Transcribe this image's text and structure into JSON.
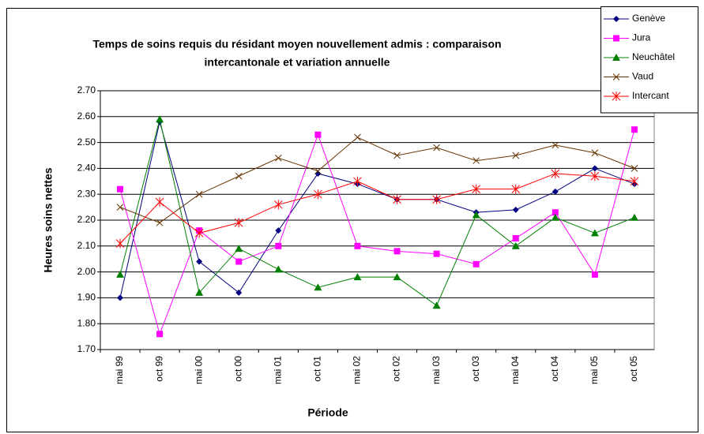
{
  "chart_data": {
    "type": "line",
    "title": [
      "Temps de soins requis du résidant moyen nouvellement admis : comparaison",
      "intercantonale et variation annuelle"
    ],
    "x_label": "Période",
    "y_label": "Heures soins nettes",
    "categories": [
      "mai 99",
      "oct 99",
      "mai 00",
      "oct 00",
      "mai 01",
      "oct 01",
      "mai 02",
      "oct 02",
      "mai 03",
      "oct 03",
      "mai 04",
      "oct 04",
      "mai 05",
      "oct 05"
    ],
    "series": [
      {
        "name": "Genève",
        "color": "#000080",
        "marker": "diamond",
        "values": [
          1.9,
          2.58,
          2.04,
          1.92,
          2.16,
          2.38,
          2.34,
          2.28,
          2.28,
          2.23,
          2.24,
          2.31,
          2.4,
          2.34
        ]
      },
      {
        "name": "Jura",
        "color": "#ff00ff",
        "marker": "square",
        "values": [
          2.32,
          1.76,
          2.16,
          2.04,
          2.1,
          2.53,
          2.1,
          2.08,
          2.07,
          2.03,
          2.13,
          2.23,
          1.99,
          2.55
        ]
      },
      {
        "name": "Neuchâtel",
        "color": "#008000",
        "marker": "triangle",
        "values": [
          1.99,
          2.59,
          1.92,
          2.09,
          2.01,
          1.94,
          1.98,
          1.98,
          1.87,
          2.22,
          2.1,
          2.21,
          2.15,
          2.21
        ]
      },
      {
        "name": "Vaud",
        "color": "#663300",
        "marker": "x",
        "values": [
          2.25,
          2.19,
          2.3,
          2.37,
          2.44,
          2.39,
          2.52,
          2.45,
          2.48,
          2.43,
          2.45,
          2.49,
          2.46,
          2.4
        ]
      },
      {
        "name": "Intercant",
        "color": "#ff0000",
        "marker": "star",
        "values": [
          2.11,
          2.27,
          2.15,
          2.19,
          2.26,
          2.3,
          2.35,
          2.28,
          2.28,
          2.32,
          2.32,
          2.38,
          2.37,
          2.35
        ]
      }
    ],
    "ylim": [
      1.7,
      2.7
    ],
    "yticks": [
      {
        "value": 1.7,
        "label": "1.70"
      },
      {
        "value": 1.8,
        "label": "1.80"
      },
      {
        "value": 1.9,
        "label": "1.90"
      },
      {
        "value": 2.0,
        "label": "2.00"
      },
      {
        "value": 2.1,
        "label": "2.10"
      },
      {
        "value": 2.2,
        "label": "2.20"
      },
      {
        "value": 2.3,
        "label": "2.30"
      },
      {
        "value": 2.4,
        "label": "2.40"
      },
      {
        "value": 2.5,
        "label": "2.50"
      },
      {
        "value": 2.6,
        "label": "2.60"
      },
      {
        "value": 2.7,
        "label": "2.70"
      }
    ],
    "grid": true,
    "legend": "top-right"
  }
}
